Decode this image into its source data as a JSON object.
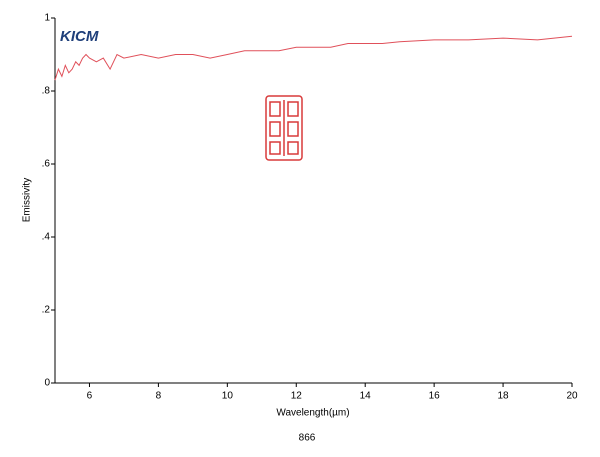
{
  "chart_data": {
    "type": "line",
    "annotation": "KICM",
    "footer": "866",
    "x_label": "Wavelength(µm)",
    "y_label": "Emissivity",
    "x": [
      5,
      5.1,
      5.2,
      5.3,
      5.4,
      5.5,
      5.6,
      5.7,
      5.8,
      5.9,
      6,
      6.2,
      6.4,
      6.6,
      6.8,
      7,
      7.5,
      8,
      8.5,
      9,
      9.5,
      10,
      10.5,
      11,
      11.5,
      12,
      12.5,
      13,
      13.5,
      14,
      14.5,
      15,
      16,
      17,
      18,
      19,
      20
    ],
    "values": [
      0.83,
      0.86,
      0.84,
      0.87,
      0.85,
      0.86,
      0.88,
      0.87,
      0.89,
      0.9,
      0.89,
      0.88,
      0.89,
      0.86,
      0.9,
      0.89,
      0.9,
      0.89,
      0.9,
      0.9,
      0.89,
      0.9,
      0.91,
      0.91,
      0.91,
      0.92,
      0.92,
      0.92,
      0.93,
      0.93,
      0.93,
      0.935,
      0.94,
      0.94,
      0.945,
      0.94,
      0.95
    ],
    "color": "#e0505a",
    "xlim": [
      5,
      20
    ],
    "xticks": [
      6,
      8,
      10,
      12,
      14,
      16,
      18,
      20
    ],
    "ylim": [
      0,
      1
    ],
    "yticks": [
      0,
      {
        "value": 0.2,
        "label": ".2"
      },
      {
        "value": 0.4,
        "label": ".4"
      },
      {
        "value": 0.6,
        "label": ".6"
      },
      {
        "value": 0.8,
        "label": ".8"
      },
      1
    ]
  }
}
